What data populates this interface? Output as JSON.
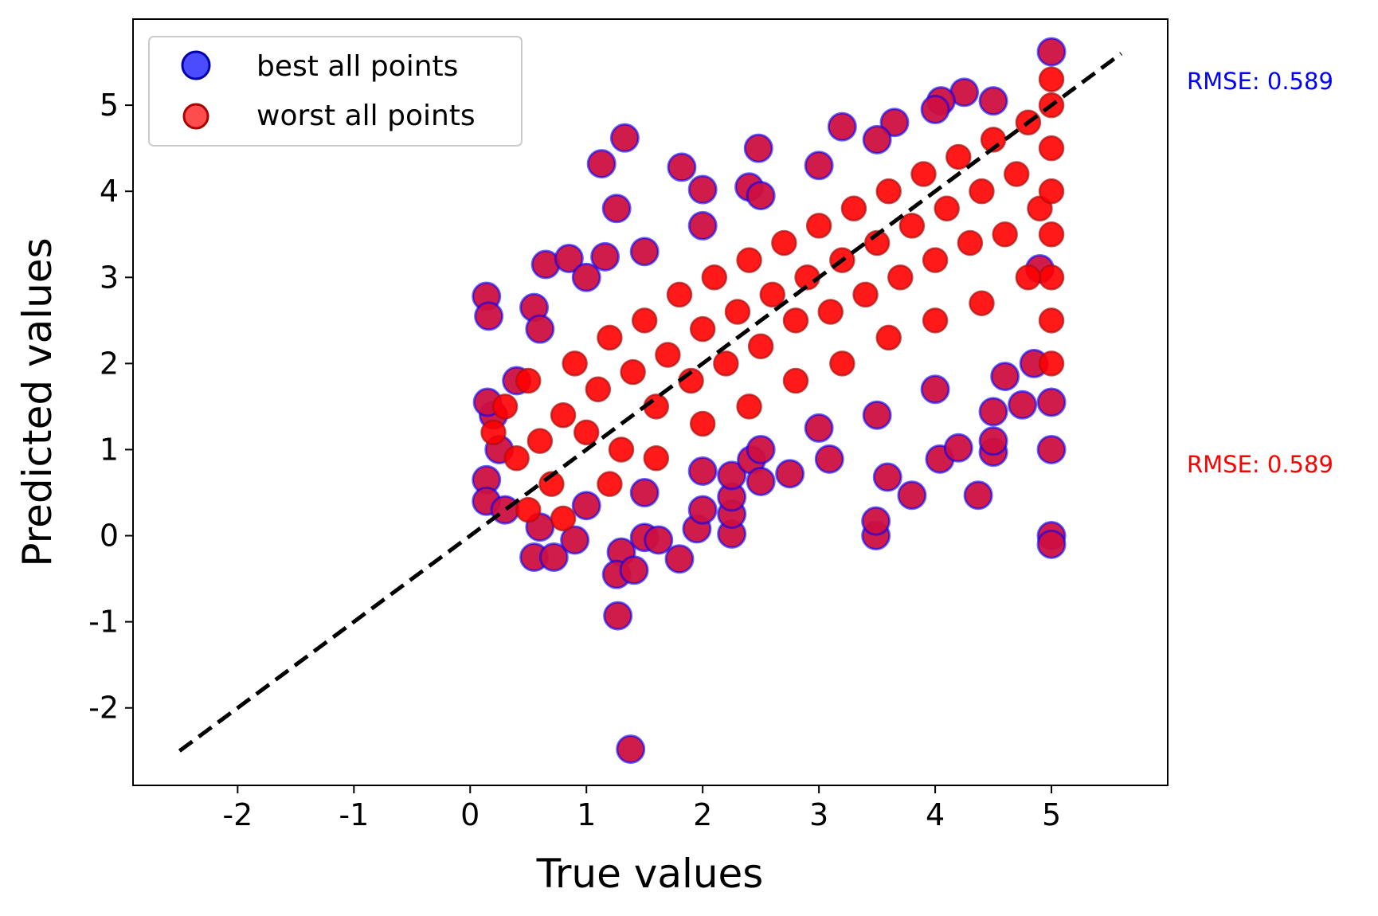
{
  "chart_data": {
    "type": "scatter",
    "xlabel": "True values",
    "ylabel": "Predicted values",
    "xlim": [
      -2.9,
      6.0
    ],
    "ylim": [
      -2.9,
      6.0
    ],
    "x_ticks": [
      -2,
      -1,
      0,
      1,
      2,
      3,
      4,
      5
    ],
    "y_ticks": [
      -2,
      -1,
      0,
      1,
      2,
      3,
      4,
      5
    ],
    "x_tick_labels": [
      "-2",
      "-1",
      "0",
      "1",
      "2",
      "3",
      "4",
      "5"
    ],
    "y_tick_labels": [
      "-2",
      "-1",
      "0",
      "1",
      "2",
      "3",
      "4",
      "5"
    ],
    "grid": false,
    "legend_position": "top-left",
    "reference_line": {
      "style": "dashed",
      "color": "#000000",
      "x": [
        -2.5,
        5.6
      ],
      "y": [
        -2.5,
        5.6
      ]
    },
    "series": [
      {
        "name": "best all points",
        "color": "#0000ff",
        "points": [
          [
            1.33,
            4.62
          ],
          [
            1.13,
            4.32
          ],
          [
            1.26,
            3.8
          ],
          [
            1.82,
            4.28
          ],
          [
            0.14,
            2.78
          ],
          [
            0.16,
            2.55
          ],
          [
            0.55,
            2.65
          ],
          [
            0.65,
            3.15
          ],
          [
            0.85,
            3.22
          ],
          [
            1.16,
            3.24
          ],
          [
            1.3,
            -0.19
          ],
          [
            1.26,
            -0.45
          ],
          [
            1.27,
            -0.93
          ],
          [
            1.38,
            -2.48
          ],
          [
            1.41,
            -0.4
          ],
          [
            1.8,
            -0.27
          ],
          [
            2.25,
            0.02
          ],
          [
            2.25,
            0.25
          ],
          [
            2.25,
            0.45
          ],
          [
            2.25,
            0.7
          ],
          [
            2.42,
            0.88
          ],
          [
            2.5,
            0.63
          ],
          [
            2.75,
            0.72
          ],
          [
            3.09,
            0.89
          ],
          [
            3.49,
            0.0
          ],
          [
            3.49,
            0.17
          ],
          [
            3.59,
            0.68
          ],
          [
            3.8,
            0.47
          ],
          [
            4.04,
            0.89
          ],
          [
            4.2,
            1.02
          ],
          [
            4.37,
            0.47
          ],
          [
            4.5,
            0.97
          ],
          [
            4.5,
            1.1
          ],
          [
            4.5,
            1.44
          ],
          [
            4.75,
            1.52
          ],
          [
            5.0,
            0.0
          ],
          [
            5.0,
            -0.1
          ],
          [
            5.0,
            1.0
          ],
          [
            5.0,
            1.55
          ],
          [
            5.0,
            5.62
          ],
          [
            3.2,
            4.75
          ],
          [
            2.48,
            4.5
          ],
          [
            2.0,
            4.02
          ],
          [
            0.14,
            0.65
          ],
          [
            0.14,
            0.4
          ],
          [
            0.55,
            -0.25
          ],
          [
            0.72,
            -0.25
          ],
          [
            0.9,
            -0.05
          ],
          [
            1.5,
            -0.02
          ],
          [
            1.62,
            -0.05
          ],
          [
            1.95,
            0.08
          ],
          [
            2.0,
            0.3
          ],
          [
            2.4,
            4.05
          ],
          [
            4.25,
            5.15
          ],
          [
            3.65,
            4.8
          ],
          [
            4.05,
            5.05
          ],
          [
            0.4,
            1.8
          ],
          [
            0.6,
            2.4
          ],
          [
            1.0,
            3.0
          ],
          [
            1.5,
            3.3
          ],
          [
            2.0,
            3.6
          ],
          [
            2.5,
            3.95
          ],
          [
            3.0,
            4.3
          ],
          [
            3.5,
            4.6
          ],
          [
            4.0,
            4.95
          ],
          [
            4.5,
            5.05
          ],
          [
            0.3,
            0.3
          ],
          [
            0.6,
            0.1
          ],
          [
            1.0,
            0.35
          ],
          [
            1.5,
            0.5
          ],
          [
            2.0,
            0.75
          ],
          [
            2.5,
            1.0
          ],
          [
            3.0,
            1.25
          ],
          [
            3.5,
            1.4
          ],
          [
            4.0,
            1.7
          ],
          [
            4.6,
            1.85
          ],
          [
            4.85,
            2.0
          ],
          [
            4.9,
            3.1
          ],
          [
            0.2,
            1.4
          ],
          [
            0.25,
            1.0
          ],
          [
            0.15,
            1.55
          ]
        ]
      },
      {
        "name": "worst all points",
        "color": "#ff0000",
        "points": [
          [
            0.2,
            1.2
          ],
          [
            0.3,
            1.5
          ],
          [
            0.4,
            0.9
          ],
          [
            0.5,
            1.8
          ],
          [
            0.6,
            1.1
          ],
          [
            0.7,
            0.6
          ],
          [
            0.8,
            1.4
          ],
          [
            0.9,
            2.0
          ],
          [
            1.0,
            1.2
          ],
          [
            1.1,
            1.7
          ],
          [
            1.2,
            2.3
          ],
          [
            1.3,
            1.0
          ],
          [
            1.4,
            1.9
          ],
          [
            1.5,
            2.5
          ],
          [
            1.6,
            1.5
          ],
          [
            1.7,
            2.1
          ],
          [
            1.8,
            2.8
          ],
          [
            1.9,
            1.8
          ],
          [
            2.0,
            2.4
          ],
          [
            2.1,
            3.0
          ],
          [
            2.2,
            2.0
          ],
          [
            2.3,
            2.6
          ],
          [
            2.4,
            3.2
          ],
          [
            2.5,
            2.2
          ],
          [
            2.6,
            2.8
          ],
          [
            2.7,
            3.4
          ],
          [
            2.8,
            2.5
          ],
          [
            2.9,
            3.0
          ],
          [
            3.0,
            3.6
          ],
          [
            3.1,
            2.6
          ],
          [
            3.2,
            3.2
          ],
          [
            3.3,
            3.8
          ],
          [
            3.4,
            2.8
          ],
          [
            3.5,
            3.4
          ],
          [
            3.6,
            4.0
          ],
          [
            3.7,
            3.0
          ],
          [
            3.8,
            3.6
          ],
          [
            3.9,
            4.2
          ],
          [
            4.0,
            3.2
          ],
          [
            4.1,
            3.8
          ],
          [
            4.2,
            4.4
          ],
          [
            4.3,
            3.4
          ],
          [
            4.4,
            4.0
          ],
          [
            4.5,
            4.6
          ],
          [
            4.6,
            3.5
          ],
          [
            4.7,
            4.2
          ],
          [
            4.8,
            4.8
          ],
          [
            4.9,
            3.8
          ],
          [
            5.0,
            2.5
          ],
          [
            5.0,
            3.5
          ],
          [
            5.0,
            4.5
          ],
          [
            5.0,
            5.3
          ],
          [
            5.0,
            2.0
          ],
          [
            5.0,
            3.0
          ],
          [
            5.0,
            4.0
          ],
          [
            5.0,
            5.0
          ],
          [
            0.5,
            0.3
          ],
          [
            0.8,
            0.2
          ],
          [
            1.2,
            0.6
          ],
          [
            1.6,
            0.9
          ],
          [
            2.0,
            1.3
          ],
          [
            2.4,
            1.5
          ],
          [
            2.8,
            1.8
          ],
          [
            3.2,
            2.0
          ],
          [
            3.6,
            2.3
          ],
          [
            4.0,
            2.5
          ],
          [
            4.4,
            2.7
          ],
          [
            4.8,
            3.0
          ]
        ]
      }
    ],
    "annotations": [
      {
        "text": "RMSE: 0.589",
        "color": "#0000ff"
      },
      {
        "text": "RMSE: 0.589",
        "color": "#ff0000"
      }
    ]
  }
}
